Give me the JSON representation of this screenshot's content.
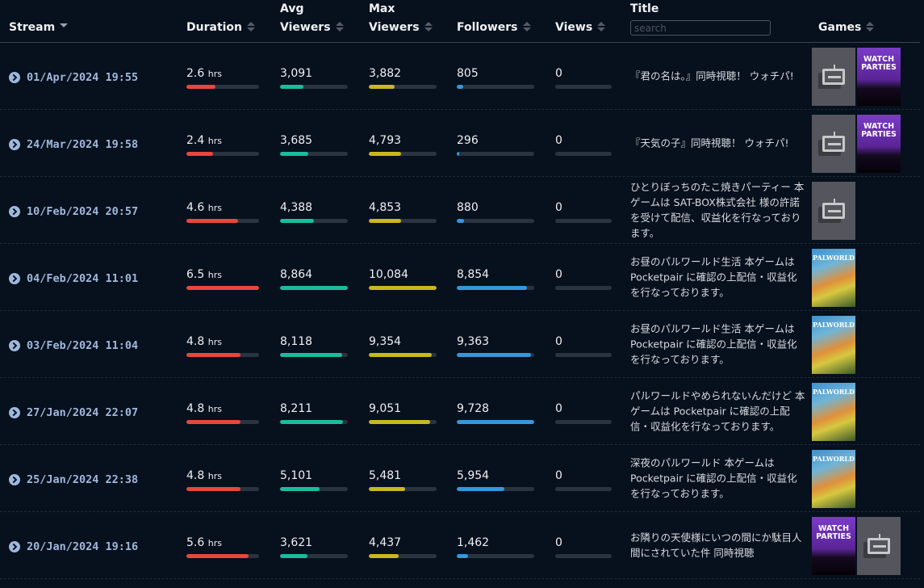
{
  "header": {
    "stream": "Stream",
    "duration": "Duration",
    "avg1": "Avg",
    "avg2": "Viewers",
    "max1": "Max",
    "max2": "Viewers",
    "followers": "Followers",
    "views": "Views",
    "title": "Title",
    "search_placeholder": "search",
    "games": "Games"
  },
  "colors": {
    "duration": "#e8473b",
    "avg": "#1abc9c",
    "max": "#c9b81e",
    "followers": "#3498db",
    "views": "#3498db"
  },
  "rows": [
    {
      "stream": "01/Apr/2024 19:55",
      "duration": "2.6",
      "unit": "hrs",
      "avg": "3,091",
      "max": "3,882",
      "followers": "805",
      "views": "0",
      "fills": {
        "duration": 0.4,
        "avg": 0.35,
        "max": 0.38,
        "followers": 0.08,
        "views": 0
      },
      "title": "『君の名は。』同時視聴！ ウォチパ!",
      "games": [
        "placeholder",
        "watch-parties"
      ]
    },
    {
      "stream": "24/Mar/2024 19:58",
      "duration": "2.4",
      "unit": "hrs",
      "avg": "3,685",
      "max": "4,793",
      "followers": "296",
      "views": "0",
      "fills": {
        "duration": 0.37,
        "avg": 0.42,
        "max": 0.48,
        "followers": 0.03,
        "views": 0
      },
      "title": "『天気の子』同時視聴！ ウォチパ!",
      "games": [
        "placeholder",
        "watch-parties"
      ]
    },
    {
      "stream": "10/Feb/2024 20:57",
      "duration": "4.6",
      "unit": "hrs",
      "avg": "4,388",
      "max": "4,853",
      "followers": "880",
      "views": "0",
      "fills": {
        "duration": 0.71,
        "avg": 0.5,
        "max": 0.48,
        "followers": 0.09,
        "views": 0
      },
      "title": "ひとりぼっちのたこ焼きパーティー 本ゲームは SAT-BOX株式会社 様の許諾を受けて配信、収益化を行なっております。",
      "games": [
        "placeholder"
      ]
    },
    {
      "stream": "04/Feb/2024 11:01",
      "duration": "6.5",
      "unit": "hrs",
      "avg": "8,864",
      "max": "10,084",
      "followers": "8,854",
      "views": "0",
      "fills": {
        "duration": 1,
        "avg": 1,
        "max": 1,
        "followers": 0.91,
        "views": 0
      },
      "title": "お昼のパルワールド生活 本ゲームは Pocketpair に確認の上配信・収益化を行なっております。",
      "games": [
        "palworld"
      ]
    },
    {
      "stream": "03/Feb/2024 11:04",
      "duration": "4.8",
      "unit": "hrs",
      "avg": "8,118",
      "max": "9,354",
      "followers": "9,363",
      "views": "0",
      "fills": {
        "duration": 0.74,
        "avg": 0.92,
        "max": 0.93,
        "followers": 0.96,
        "views": 0
      },
      "title": "お昼のパルワールド生活 本ゲームは Pocketpair に確認の上配信・収益化を行なっております。",
      "games": [
        "palworld"
      ]
    },
    {
      "stream": "27/Jan/2024 22:07",
      "duration": "4.8",
      "unit": "hrs",
      "avg": "8,211",
      "max": "9,051",
      "followers": "9,728",
      "views": "0",
      "fills": {
        "duration": 0.74,
        "avg": 0.93,
        "max": 0.9,
        "followers": 1,
        "views": 0
      },
      "title": "パルワールドやめられないんだけど 本ゲームは Pocketpair に確認の上配信・収益化を行なっております。",
      "games": [
        "palworld"
      ]
    },
    {
      "stream": "25/Jan/2024 22:38",
      "duration": "4.8",
      "unit": "hrs",
      "avg": "5,101",
      "max": "5,481",
      "followers": "5,954",
      "views": "0",
      "fills": {
        "duration": 0.74,
        "avg": 0.58,
        "max": 0.54,
        "followers": 0.61,
        "views": 0
      },
      "title": "深夜のパルワールド 本ゲームは Pocketpair に確認の上配信・収益化を行なっております。",
      "games": [
        "palworld"
      ]
    },
    {
      "stream": "20/Jan/2024 19:16",
      "duration": "5.6",
      "unit": "hrs",
      "avg": "3,621",
      "max": "4,437",
      "followers": "1,462",
      "views": "0",
      "fills": {
        "duration": 0.86,
        "avg": 0.41,
        "max": 0.44,
        "followers": 0.15,
        "views": 0
      },
      "title": "お隣りの天使様にいつの間にか駄目人間にされていた件 同時視聴",
      "games": [
        "watch-parties",
        "placeholder"
      ]
    }
  ],
  "game_labels": {
    "watch_parties_1": "WATCH",
    "watch_parties_2": "PARTIES",
    "palworld": "PALWORLD"
  }
}
